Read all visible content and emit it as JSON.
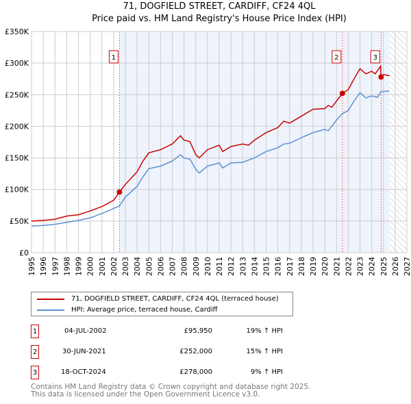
{
  "chart_data": {
    "type": "line",
    "title": "71, DOGFIELD STREET, CARDIFF, CF24 4QL",
    "subtitle": "Price paid vs. HM Land Registry's House Price Index (HPI)",
    "xlim": [
      1995,
      2027
    ],
    "ylim": [
      0,
      350000
    ],
    "x_ticks": [
      "1995",
      "1996",
      "1997",
      "1998",
      "1999",
      "2000",
      "2001",
      "2002",
      "2003",
      "2004",
      "2005",
      "2006",
      "2007",
      "2008",
      "2009",
      "2010",
      "2011",
      "2012",
      "2013",
      "2014",
      "2015",
      "2016",
      "2017",
      "2018",
      "2019",
      "2020",
      "2021",
      "2022",
      "2023",
      "2024",
      "2025",
      "2026",
      "2027"
    ],
    "y_ticks": [
      {
        "v": 0,
        "label": "£0"
      },
      {
        "v": 50000,
        "label": "£50K"
      },
      {
        "v": 100000,
        "label": "£100K"
      },
      {
        "v": 150000,
        "label": "£150K"
      },
      {
        "v": 200000,
        "label": "£200K"
      },
      {
        "v": 250000,
        "label": "£250K"
      },
      {
        "v": 300000,
        "label": "£300K"
      },
      {
        "v": 350000,
        "label": "£350K"
      }
    ],
    "grid": true,
    "series": [
      {
        "name": "71, DOGFIELD STREET, CARDIFF, CF24 4QL (terraced house)",
        "color": "#cc0000",
        "x": [
          1995,
          1996,
          1997,
          1998,
          1999,
          2000,
          2001,
          2002,
          2002.5,
          2003,
          2004,
          2004.5,
          2005,
          2006,
          2007,
          2007.7,
          2008,
          2008.5,
          2009,
          2009.3,
          2010,
          2011,
          2011.3,
          2012,
          2013,
          2013.5,
          2014,
          2015,
          2016,
          2016.5,
          2017,
          2018,
          2019,
          2020,
          2020.3,
          2020.6,
          2021,
          2021.5,
          2022,
          2022.5,
          2023,
          2023.5,
          2024,
          2024.3,
          2024.75,
          2024.8,
          2025,
          2025.5
        ],
        "y": [
          50000,
          51000,
          53000,
          58000,
          60000,
          66000,
          73000,
          83000,
          95950,
          108000,
          128000,
          145000,
          158000,
          163000,
          172000,
          185000,
          178000,
          176000,
          155000,
          150000,
          163000,
          170000,
          160000,
          168000,
          172000,
          170000,
          178000,
          190000,
          198000,
          208000,
          205000,
          216000,
          227000,
          228000,
          233000,
          230000,
          240000,
          252000,
          258000,
          275000,
          291000,
          283000,
          287000,
          283000,
          295000,
          278000,
          282000,
          280000
        ]
      },
      {
        "name": "HPI: Average price, terraced house, Cardiff",
        "color": "#5b8fd4",
        "x": [
          1995,
          1996,
          1997,
          1998,
          1999,
          2000,
          2001,
          2002,
          2002.5,
          2003,
          2004,
          2004.5,
          2005,
          2006,
          2007,
          2007.7,
          2008,
          2008.5,
          2009,
          2009.3,
          2010,
          2011,
          2011.3,
          2012,
          2013,
          2014,
          2015,
          2016,
          2016.5,
          2017,
          2018,
          2019,
          2020,
          2020.3,
          2021,
          2021.5,
          2022,
          2022.5,
          2023,
          2023.5,
          2024,
          2024.5,
          2024.8,
          2025,
          2025.5
        ],
        "y": [
          42000,
          43000,
          45000,
          48000,
          51000,
          55000,
          62000,
          70000,
          74000,
          88000,
          105000,
          120000,
          133000,
          137000,
          145000,
          155000,
          150000,
          148000,
          132000,
          126000,
          137000,
          142000,
          134000,
          142000,
          143000,
          150000,
          160000,
          166000,
          172000,
          173000,
          182000,
          190000,
          195000,
          193000,
          210000,
          220000,
          225000,
          240000,
          253000,
          245000,
          248000,
          246000,
          255000,
          255000,
          256000
        ]
      }
    ],
    "sales": [
      {
        "label": "1",
        "x": 2002.5,
        "y": 95950
      },
      {
        "label": "2",
        "x": 2021.5,
        "y": 252000
      },
      {
        "label": "3",
        "x": 2024.8,
        "y": 278000
      }
    ],
    "forecast_start": 2025.5
  },
  "title_line1": "71, DOGFIELD STREET, CARDIFF, CF24 4QL",
  "title_line2": "Price paid vs. HM Land Registry's House Price Index (HPI)",
  "legend": {
    "red": "71, DOGFIELD STREET, CARDIFF, CF24 4QL (terraced house)",
    "blue": "HPI: Average price, terraced house, Cardiff"
  },
  "transactions": [
    {
      "n": "1",
      "date": "04-JUL-2002",
      "price": "£95,950",
      "hpi": "19% ↑ HPI"
    },
    {
      "n": "2",
      "date": "30-JUN-2021",
      "price": "£252,000",
      "hpi": "15% ↑ HPI"
    },
    {
      "n": "3",
      "date": "18-OCT-2024",
      "price": "£278,000",
      "hpi": "9% ↑ HPI"
    }
  ],
  "footer": [
    "Contains HM Land Registry data © Crown copyright and database right 2025.",
    "This data is licensed under the Open Government Licence v3.0."
  ]
}
